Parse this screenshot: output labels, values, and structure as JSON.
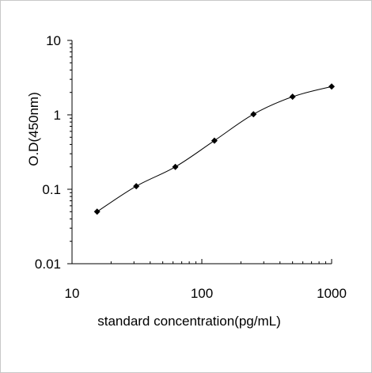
{
  "chart_data": {
    "type": "line",
    "title": "",
    "xlabel": "standard concentration(pg/mL)",
    "ylabel": "O.D(450nm)",
    "x_scale": "log",
    "y_scale": "log",
    "xlim": [
      10,
      1000
    ],
    "ylim": [
      0.01,
      10
    ],
    "x_ticks": [
      "10",
      "100",
      "1000"
    ],
    "y_ticks": [
      "0.01",
      "0.1",
      "1",
      "10"
    ],
    "grid": false,
    "legend": "none",
    "line_color": "#000000",
    "marker": "diamond",
    "series": [
      {
        "x": [
          15.6,
          31.25,
          62.5,
          125,
          250,
          500,
          1000
        ],
        "y": [
          0.05,
          0.11,
          0.2,
          0.45,
          1.02,
          1.75,
          2.4
        ]
      }
    ]
  }
}
